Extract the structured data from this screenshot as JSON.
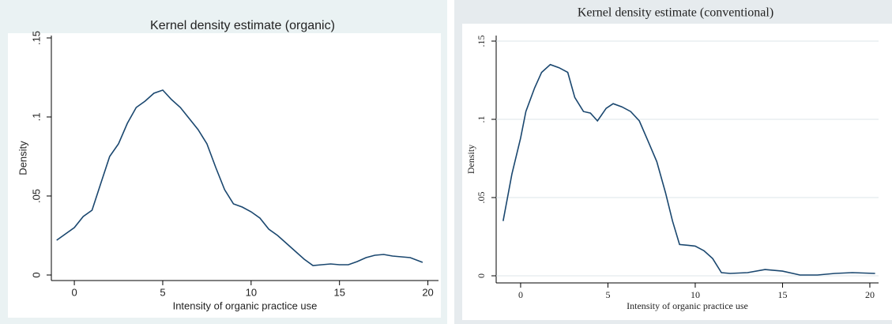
{
  "chart_data": [
    {
      "type": "line",
      "title": "Kernel density estimate (organic)",
      "x_label": "Intensity of organic practice use",
      "y_label": "Density",
      "x": [
        -1,
        0,
        0.5,
        1,
        1.5,
        2,
        2.5,
        3,
        3.5,
        4,
        4.5,
        5,
        5.5,
        6,
        6.5,
        7,
        7.5,
        8,
        8.5,
        9,
        9.5,
        10,
        10.5,
        11,
        11.5,
        12,
        12.5,
        13,
        13.5,
        14,
        14.5,
        15,
        15.5,
        16,
        16.5,
        17,
        17.5,
        18,
        18.5,
        19,
        19.7
      ],
      "values": [
        0.022,
        0.03,
        0.037,
        0.041,
        0.058,
        0.075,
        0.083,
        0.096,
        0.106,
        0.11,
        0.115,
        0.117,
        0.111,
        0.106,
        0.099,
        0.092,
        0.083,
        0.068,
        0.054,
        0.045,
        0.043,
        0.04,
        0.036,
        0.029,
        0.025,
        0.02,
        0.015,
        0.01,
        0.006,
        0.0065,
        0.007,
        0.0065,
        0.0065,
        0.0085,
        0.011,
        0.0125,
        0.013,
        0.012,
        0.0115,
        0.011,
        0.008
      ],
      "color": "#1a476f",
      "xlim": [
        -1.3,
        20.6
      ],
      "ylim": [
        0,
        0.15
      ],
      "xticks": [
        0,
        5,
        10,
        15,
        20
      ],
      "yticks": [
        0,
        {
          "value": 0.05,
          "label": ".05"
        },
        {
          "value": 0.1,
          "label": ".1"
        },
        {
          "value": 0.15,
          "label": ".15"
        }
      ],
      "grid": false
    },
    {
      "type": "line",
      "title": "Kernel density estimate (conventional)",
      "x_label": "Intensity of organic practice use",
      "y_label": "Density",
      "x": [
        -1,
        -0.5,
        0,
        0.3,
        0.8,
        1.2,
        1.7,
        2.2,
        2.7,
        3.1,
        3.6,
        4,
        4.4,
        4.9,
        5.3,
        5.8,
        6.3,
        6.8,
        7.3,
        7.8,
        8.3,
        8.7,
        9.1,
        9.6,
        10,
        10.5,
        11,
        11.5,
        12,
        13,
        14,
        15,
        16,
        17,
        18,
        19,
        20.3
      ],
      "values": [
        0.035,
        0.065,
        0.088,
        0.105,
        0.12,
        0.13,
        0.135,
        0.133,
        0.13,
        0.114,
        0.105,
        0.104,
        0.099,
        0.107,
        0.11,
        0.108,
        0.105,
        0.099,
        0.086,
        0.073,
        0.053,
        0.035,
        0.02,
        0.0195,
        0.019,
        0.016,
        0.011,
        0.002,
        0.0015,
        0.002,
        0.004,
        0.003,
        0.0005,
        0.0005,
        0.0015,
        0.002,
        0.0015
      ],
      "color": "#1a476f",
      "xlim": [
        -1.4,
        20.5
      ],
      "ylim": [
        0,
        0.15
      ],
      "xticks": [
        0,
        5,
        10,
        15,
        20
      ],
      "yticks": [
        0,
        {
          "value": 0.05,
          "label": ".05"
        },
        {
          "value": 0.1,
          "label": ".1"
        },
        {
          "value": 0.15,
          "label": ".15"
        }
      ],
      "grid": true
    }
  ]
}
